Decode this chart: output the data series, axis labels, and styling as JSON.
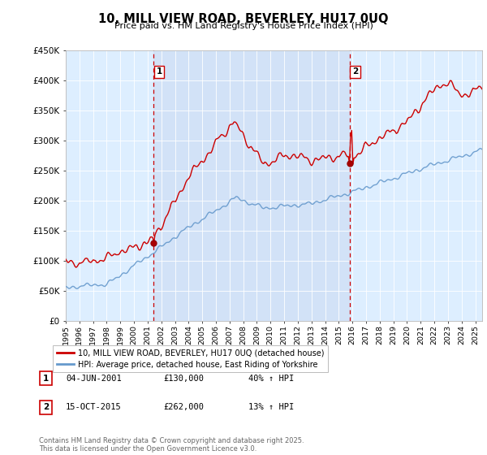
{
  "title": "10, MILL VIEW ROAD, BEVERLEY, HU17 0UQ",
  "subtitle": "Price paid vs. HM Land Registry's House Price Index (HPI)",
  "ylabel_max": 450000,
  "yticks": [
    0,
    50000,
    100000,
    150000,
    200000,
    250000,
    300000,
    350000,
    400000,
    450000
  ],
  "ytick_labels": [
    "£0",
    "£50K",
    "£100K",
    "£150K",
    "£200K",
    "£250K",
    "£300K",
    "£350K",
    "£400K",
    "£450K"
  ],
  "sale1_date": 2001.42,
  "sale1_price": 130000,
  "sale1_label": "1",
  "sale2_date": 2015.79,
  "sale2_price": 262000,
  "sale2_label": "2",
  "line_color_property": "#cc0000",
  "line_color_hpi": "#6699cc",
  "vline_color": "#cc0000",
  "background_color": "#ddeeff",
  "background_highlight": "#c8d8f0",
  "legend_label1": "10, MILL VIEW ROAD, BEVERLEY, HU17 0UQ (detached house)",
  "legend_label2": "HPI: Average price, detached house, East Riding of Yorkshire",
  "table_row1": [
    "1",
    "04-JUN-2001",
    "£130,000",
    "40% ↑ HPI"
  ],
  "table_row2": [
    "2",
    "15-OCT-2015",
    "£262,000",
    "13% ↑ HPI"
  ],
  "footnote": "Contains HM Land Registry data © Crown copyright and database right 2025.\nThis data is licensed under the Open Government Licence v3.0.",
  "xmin": 1995,
  "xmax": 2025.5
}
